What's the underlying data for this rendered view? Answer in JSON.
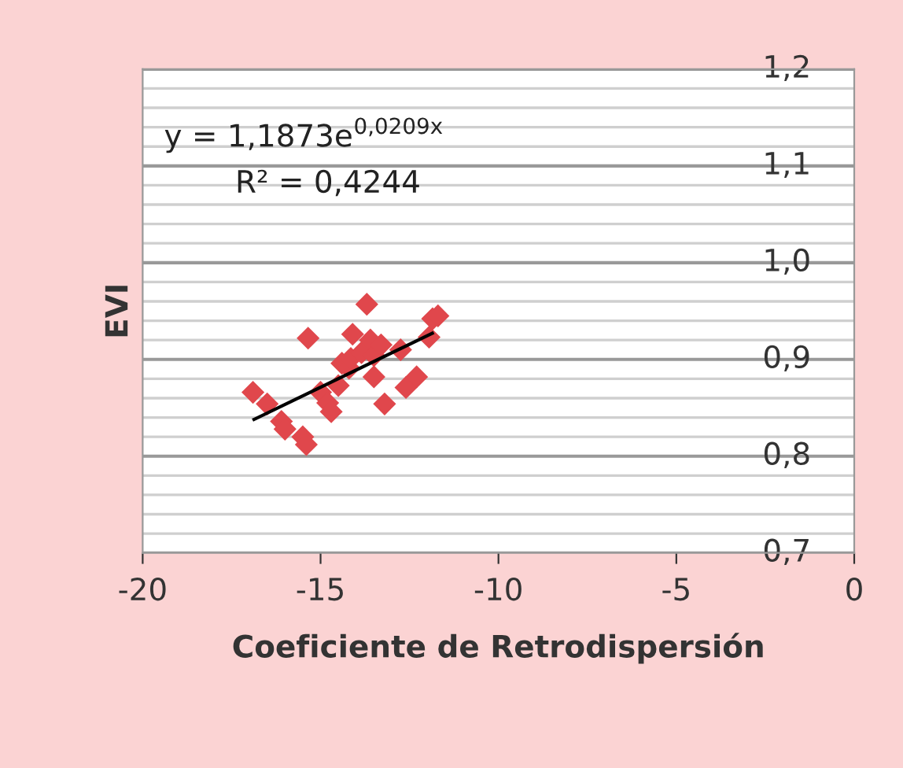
{
  "chart_data": {
    "type": "scatter",
    "xlabel": "Coeficiente de Retrodispersión",
    "ylabel": "EVI",
    "annotations": [
      "y = 1,1873e$^{0,0209x}$",
      "R² = 0,4244"
    ],
    "series": [
      {
        "color": "#e0474c",
        "marker": "diamond",
        "x": [
          -16.9,
          -16.5,
          -16.1,
          -16.0,
          -15.5,
          -15.4,
          -15.35,
          -15.0,
          -14.8,
          -14.7,
          -14.5,
          -14.4,
          -14.2,
          -14.15,
          -14.1,
          -13.85,
          -13.7,
          -13.6,
          -13.5,
          -13.5,
          -13.3,
          -13.2,
          -12.75,
          -12.6,
          -12.3,
          -11.95,
          -11.85,
          -11.7
        ],
        "values": [
          0.866,
          0.854,
          0.836,
          0.828,
          0.82,
          0.812,
          0.922,
          0.866,
          0.855,
          0.846,
          0.873,
          0.896,
          0.891,
          0.901,
          0.926,
          0.907,
          0.957,
          0.92,
          0.882,
          0.904,
          0.915,
          0.854,
          0.91,
          0.871,
          0.882,
          0.923,
          0.942,
          0.945
        ]
      },
      {
        "type": "line",
        "color": "#000000",
        "marker": "none",
        "x": [
          -16.87,
          -11.86
        ],
        "values": [
          0.838,
          0.927
        ]
      }
    ],
    "xlim": [
      -20,
      0
    ],
    "xticks": [
      -20,
      -15,
      -10,
      -5,
      0
    ],
    "ylim": [
      0.7,
      1.2
    ],
    "yticks": [
      {
        "value": 0.7,
        "label": "0,7"
      },
      {
        "value": 0.72,
        "label": null
      },
      {
        "value": 0.74,
        "label": null
      },
      {
        "value": 0.76,
        "label": null
      },
      {
        "value": 0.78,
        "label": null
      },
      {
        "value": 0.8,
        "label": "0,8"
      },
      {
        "value": 0.82,
        "label": null
      },
      {
        "value": 0.84,
        "label": null
      },
      {
        "value": 0.86,
        "label": null
      },
      {
        "value": 0.88,
        "label": null
      },
      {
        "value": 0.9,
        "label": "0,9"
      },
      {
        "value": 0.92,
        "label": null
      },
      {
        "value": 0.94,
        "label": null
      },
      {
        "value": 0.96,
        "label": null
      },
      {
        "value": 0.98,
        "label": null
      },
      {
        "value": 1.0,
        "label": "1,0"
      },
      {
        "value": 1.02,
        "label": null
      },
      {
        "value": 1.04,
        "label": null
      },
      {
        "value": 1.06,
        "label": null
      },
      {
        "value": 1.08,
        "label": null
      },
      {
        "value": 1.1,
        "label": "1,1"
      },
      {
        "value": 1.12,
        "label": null
      },
      {
        "value": 1.14,
        "label": null
      },
      {
        "value": 1.16,
        "label": null
      },
      {
        "value": 1.18,
        "label": null
      },
      {
        "value": 1.2,
        "label": "1,2"
      }
    ],
    "grid": "y",
    "legend": false
  }
}
